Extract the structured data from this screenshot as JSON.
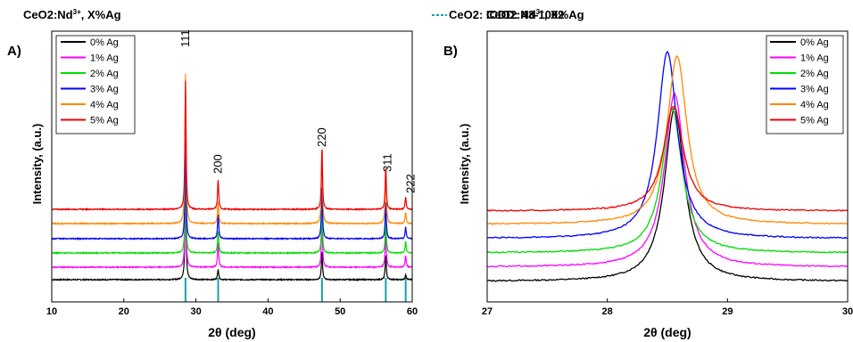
{
  "chart_data": [
    {
      "panel": "A)",
      "type": "line",
      "title": "CeO2:Nd3+, X%Ag",
      "reference_legend": "CeO2: ICDD: 43-1002",
      "xlabel": "2θ (deg)",
      "ylabel": "Intensity, (a.u.)",
      "xlim": [
        10,
        60
      ],
      "xticks": [
        "10",
        "20",
        "30",
        "40",
        "50",
        "60"
      ],
      "reference_lines": [
        28.55,
        33.08,
        47.48,
        56.33,
        59.09
      ],
      "peak_labels": [
        {
          "x": 28.55,
          "label": "111"
        },
        {
          "x": 33.08,
          "label": "200"
        },
        {
          "x": 47.48,
          "label": "220"
        },
        {
          "x": 56.33,
          "label": "311"
        },
        {
          "x": 59.09,
          "label": "222"
        }
      ],
      "series": [
        {
          "name": "0% Ag",
          "color": "#000000",
          "baseline": 0,
          "peaks": [
            [
              28.55,
              115
            ],
            [
              33.08,
              12
            ],
            [
              47.48,
              32
            ],
            [
              56.33,
              28
            ],
            [
              59.09,
              6
            ]
          ]
        },
        {
          "name": "1% Ag",
          "color": "#ff00ff",
          "baseline": 14,
          "peaks": [
            [
              28.55,
              100
            ],
            [
              33.08,
              28
            ],
            [
              47.48,
              55
            ],
            [
              56.33,
              42
            ],
            [
              59.09,
              13
            ]
          ]
        },
        {
          "name": "2% Ag",
          "color": "#00dd00",
          "baseline": 30,
          "peaks": [
            [
              28.55,
              95
            ],
            [
              33.08,
              26
            ],
            [
              47.48,
              52
            ],
            [
              56.33,
              40
            ],
            [
              59.09,
              13
            ]
          ]
        },
        {
          "name": "3% Ag",
          "color": "#0000ff",
          "baseline": 46,
          "peaks": [
            [
              28.55,
              110
            ],
            [
              33.08,
              28
            ],
            [
              47.48,
              60
            ],
            [
              56.33,
              43
            ],
            [
              59.09,
              13
            ]
          ]
        },
        {
          "name": "4% Ag",
          "color": "#ff8800",
          "baseline": 63,
          "peaks": [
            [
              28.55,
              168
            ],
            [
              33.08,
              25
            ],
            [
              47.48,
              86
            ],
            [
              56.33,
              65
            ],
            [
              59.09,
              13
            ]
          ]
        },
        {
          "name": "5% Ag",
          "color": "#ee0000",
          "baseline": 79,
          "peaks": [
            [
              28.55,
              145
            ],
            [
              33.08,
              34
            ],
            [
              47.48,
              70
            ],
            [
              56.33,
              48
            ],
            [
              59.09,
              14
            ]
          ]
        }
      ],
      "legend_position": "top-left"
    },
    {
      "panel": "B)",
      "type": "line",
      "title": "CeO2:Nd3+, X%Ag",
      "xlabel": "2θ (deg)",
      "ylabel": "Intensity, (a.u.)",
      "xlim": [
        27,
        30
      ],
      "xticks": [
        "27",
        "28",
        "29",
        "30"
      ],
      "series": [
        {
          "name": "0% Ag",
          "color": "#000000",
          "baseline": 0,
          "center": 28.56,
          "height": 195
        },
        {
          "name": "1% Ag",
          "color": "#ff00ff",
          "baseline": 16,
          "center": 28.56,
          "height": 195
        },
        {
          "name": "2% Ag",
          "color": "#00dd00",
          "baseline": 32,
          "center": 28.54,
          "height": 162
        },
        {
          "name": "3% Ag",
          "color": "#0000ff",
          "baseline": 48,
          "center": 28.5,
          "height": 210
        },
        {
          "name": "4% Ag",
          "color": "#ff8800",
          "baseline": 64,
          "center": 28.58,
          "height": 189
        },
        {
          "name": "5% Ag",
          "color": "#ee0000",
          "baseline": 79,
          "center": 28.55,
          "height": 118
        }
      ],
      "legend_position": "top-right"
    }
  ]
}
